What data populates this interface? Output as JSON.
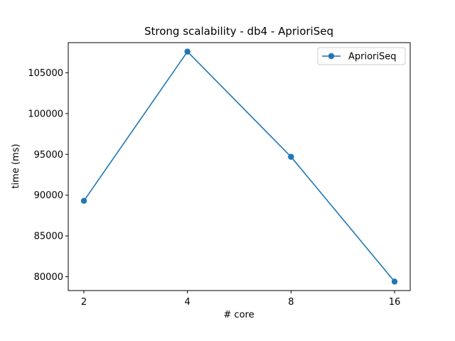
{
  "chart_data": {
    "type": "line",
    "title": "Strong scalability - db4 - AprioriSeq",
    "xlabel": "# core",
    "ylabel": "time (ms)",
    "categories": [
      "2",
      "4",
      "8",
      "16"
    ],
    "series": [
      {
        "name": "AprioriSeq",
        "values": [
          89300,
          107600,
          94700,
          79400
        ],
        "color": "#1f77b4",
        "marker": "circle"
      }
    ],
    "yticks": [
      80000,
      85000,
      90000,
      95000,
      100000,
      105000
    ],
    "ylim": [
      78300,
      108700
    ],
    "grid": false,
    "legend": "top-right"
  }
}
